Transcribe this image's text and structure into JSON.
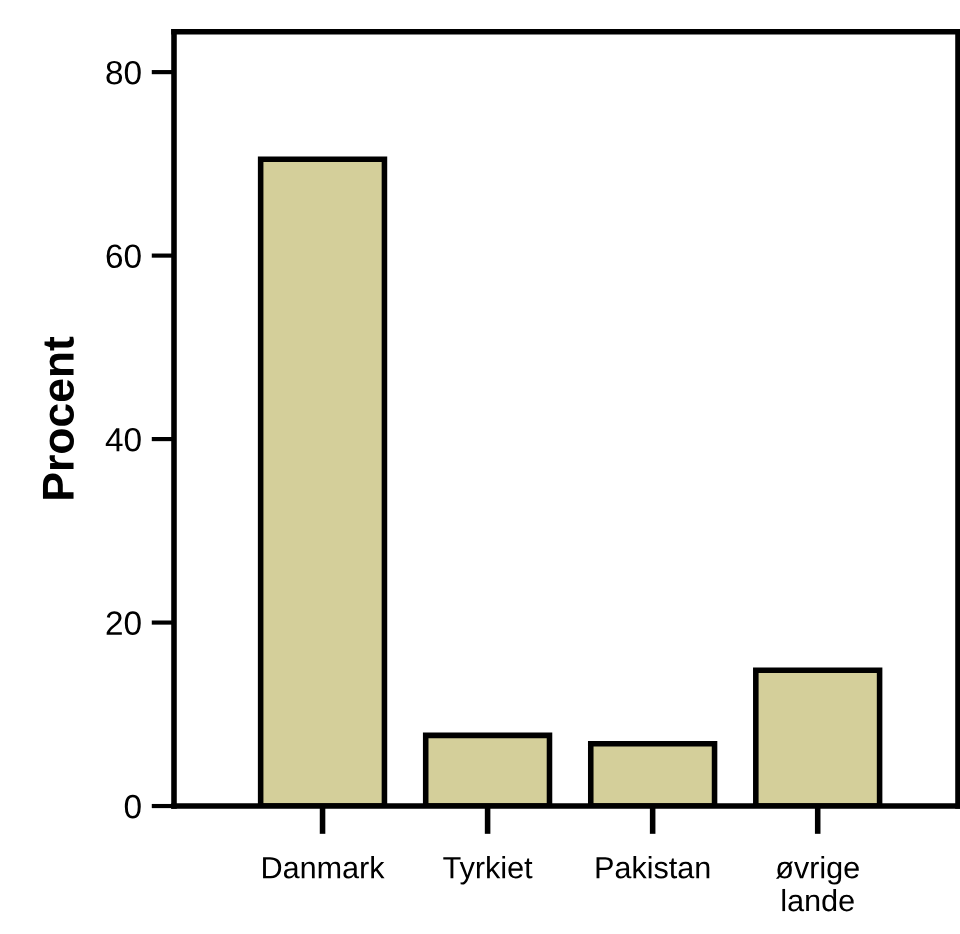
{
  "chart_data": {
    "type": "bar",
    "ylabel": "Procent",
    "categories": [
      "Danmark",
      "Tyrkiet",
      "Pakistan",
      "øvrige\nlande"
    ],
    "values": [
      70.5,
      7.7,
      6.8,
      14.8
    ],
    "color": "#d4cf9a",
    "ylim": [
      0,
      84.4
    ],
    "yticks": [
      0,
      20,
      40,
      60,
      80
    ],
    "grid": false
  }
}
